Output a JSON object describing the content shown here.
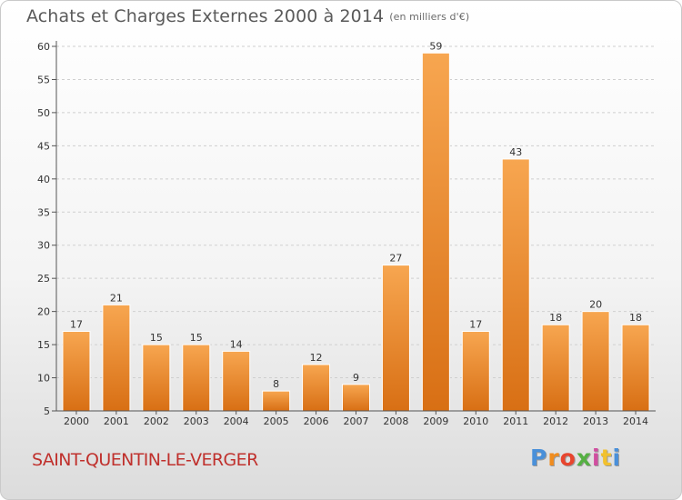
{
  "title": "Achats et Charges Externes 2000 à 2014",
  "subtitle": "(en milliers d'€)",
  "location": "SAINT-QUENTIN-LE-VERGER",
  "logo": {
    "text": "Proxiti",
    "letter_colors": [
      "#4a90d9",
      "#f08c1e",
      "#e8452e",
      "#55b043",
      "#d04ea0",
      "#f2c12e",
      "#4a90d9"
    ]
  },
  "colors": {
    "bar_top": "#f7a650",
    "bar_bottom": "#d86f14",
    "axis": "#555555",
    "grid": "#cfcfcf"
  },
  "chart_data": {
    "type": "bar",
    "title": "Achats et Charges Externes 2000 à 2014",
    "subtitle": "(en milliers d'€)",
    "categories": [
      "2000",
      "2001",
      "2002",
      "2003",
      "2004",
      "2005",
      "2006",
      "2007",
      "2008",
      "2009",
      "2010",
      "2011",
      "2012",
      "2013",
      "2014"
    ],
    "values": [
      17,
      21,
      15,
      15,
      14,
      8,
      12,
      9,
      27,
      59,
      17,
      43,
      18,
      20,
      18
    ],
    "value_labels": [
      "17",
      "21",
      "15",
      "15",
      "14",
      "8",
      "12",
      "9",
      "27",
      "59",
      "17",
      "43",
      "18",
      "20",
      "18"
    ],
    "ylim": [
      5,
      60
    ],
    "yticks": [
      5,
      10,
      15,
      20,
      25,
      30,
      35,
      40,
      45,
      50,
      55,
      60
    ],
    "grid": "horizontal-dashed",
    "legend": "none"
  }
}
